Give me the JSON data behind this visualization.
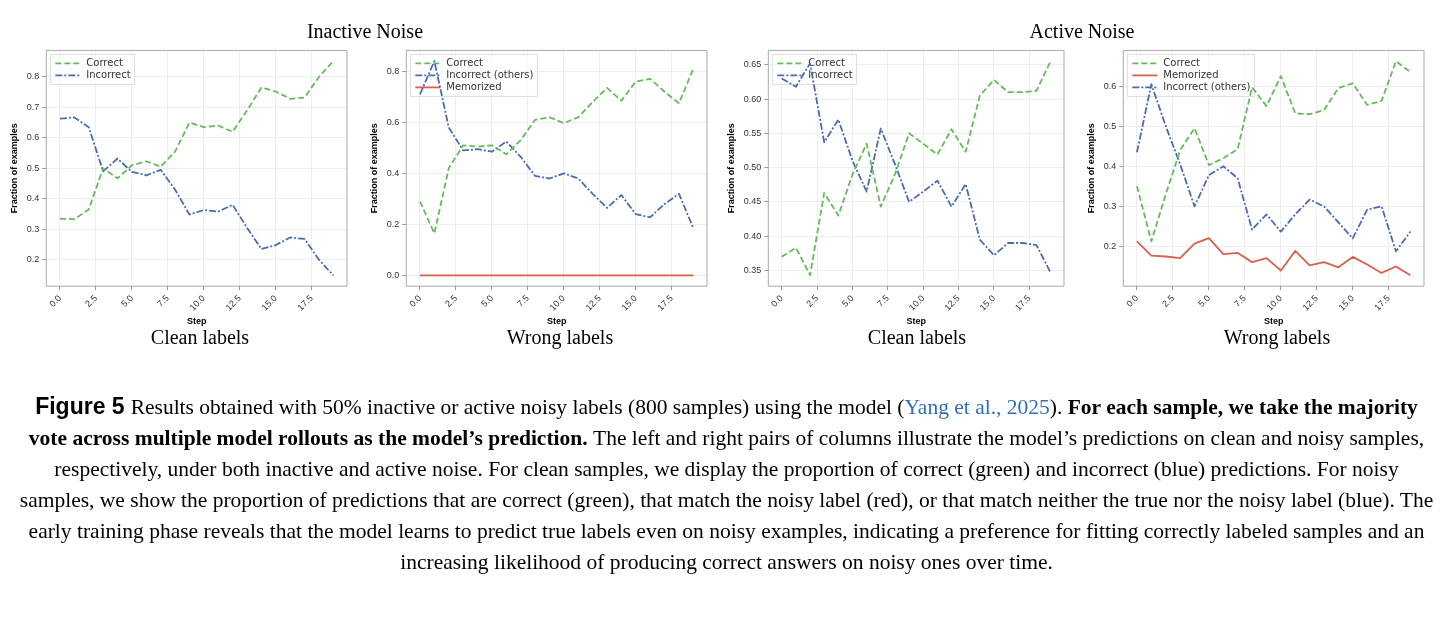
{
  "chart_data": [
    {
      "type": "line",
      "title": "Inactive Noise",
      "xlabel": "Step",
      "ylabel": "Fraction of examples",
      "annotations": [
        "Clean labels",
        "Figure 5",
        "Results obtained with 50% inactive or active noisy labels (800 samples) using the model (",
        "Yang et al., 2025",
        ").",
        "For each sample, we take the majority vote across multiple model rollouts as the model’s prediction.",
        "The left and right pairs of columns illustrate the model’s predictions on clean and noisy samples, respectively, under both inactive and active noise. For clean samples, we display the proportion of correct (green) and incorrect (blue) predictions. For noisy samples, we show the proportion of predictions that are correct (green), that match the noisy label (red), or that match neither the true nor the noisy label (blue). The early training phase reveals that the model learns to predict true labels even on noisy examples, indicating a preference for fitting correctly labeled samples and an increasing likelihood of producing correct answers on noisy ones over time."
      ],
      "x": [
        0,
        1,
        2,
        3,
        4,
        5,
        6,
        7,
        8,
        9,
        10,
        11,
        12,
        13,
        14,
        15,
        16,
        17,
        18,
        19
      ],
      "xlim": [
        -0.95,
        19.95
      ],
      "xticks": [
        {
          "value": 0,
          "label": "0.0"
        },
        {
          "value": 2.5,
          "label": "2.5"
        },
        {
          "value": 5,
          "label": "5.0"
        },
        {
          "value": 7.5,
          "label": "7.5"
        },
        {
          "value": 10,
          "label": "10.0"
        },
        {
          "value": 12.5,
          "label": "12.5"
        },
        {
          "value": 15,
          "label": "15.0"
        },
        {
          "value": 17.5,
          "label": "17.5"
        }
      ],
      "ylim": [
        0.113,
        0.887
      ],
      "yticks": [
        0.2,
        0.3,
        0.4,
        0.5,
        0.6,
        0.7,
        0.8
      ],
      "grid": true,
      "legend": "top left",
      "marker": "none",
      "series": [
        {
          "name": "Correct",
          "color": "#66bb5a",
          "line_style": "dashed",
          "values": [
            0.335,
            0.333,
            0.365,
            0.5,
            0.467,
            0.51,
            0.523,
            0.505,
            0.555,
            0.65,
            0.635,
            0.64,
            0.62,
            0.69,
            0.765,
            0.752,
            0.728,
            0.732,
            0.8,
            0.852
          ]
        },
        {
          "name": "Incorrect",
          "color": "#4c6bb0",
          "line_style": "dashdot",
          "values": [
            0.663,
            0.667,
            0.635,
            0.49,
            0.532,
            0.488,
            0.477,
            0.495,
            0.43,
            0.348,
            0.363,
            0.358,
            0.38,
            0.305,
            0.235,
            0.248,
            0.273,
            0.268,
            0.2,
            0.148
          ]
        }
      ]
    },
    {
      "type": "line",
      "xlabel": "Step",
      "ylabel": "Fraction of examples",
      "annotations": [
        "Wrong labels"
      ],
      "x": [
        0,
        1,
        2,
        3,
        4,
        5,
        6,
        7,
        8,
        9,
        10,
        11,
        12,
        13,
        14,
        15,
        16,
        17,
        18,
        19
      ],
      "xlim": [
        -0.95,
        19.95
      ],
      "xticks": [
        {
          "value": 0,
          "label": "0.0"
        },
        {
          "value": 2.5,
          "label": "2.5"
        },
        {
          "value": 5,
          "label": "5.0"
        },
        {
          "value": 7.5,
          "label": "7.5"
        },
        {
          "value": 10,
          "label": "10.0"
        },
        {
          "value": 12.5,
          "label": "12.5"
        },
        {
          "value": 15,
          "label": "15.0"
        },
        {
          "value": 17.5,
          "label": "17.5"
        }
      ],
      "ylim": [
        -0.042,
        0.882
      ],
      "yticks": [
        {
          "value": 0,
          "label": "0.0"
        },
        0.2,
        0.4,
        0.6,
        0.8
      ],
      "grid": true,
      "legend": "top left",
      "marker": "none",
      "series": [
        {
          "name": "Correct",
          "color": "#66bb5a",
          "line_style": "dashed",
          "values": [
            0.29,
            0.165,
            0.42,
            0.51,
            0.505,
            0.51,
            0.475,
            0.53,
            0.61,
            0.62,
            0.597,
            0.62,
            0.68,
            0.735,
            0.685,
            0.76,
            0.77,
            0.72,
            0.675,
            0.81
          ]
        },
        {
          "name": "Incorrect (others)",
          "color": "#4c6bb0",
          "line_style": "dashdot",
          "values": [
            0.71,
            0.84,
            0.58,
            0.49,
            0.495,
            0.485,
            0.525,
            0.465,
            0.39,
            0.38,
            0.4,
            0.38,
            0.32,
            0.265,
            0.315,
            0.24,
            0.228,
            0.28,
            0.32,
            0.185
          ]
        },
        {
          "name": "Memorized",
          "color": "#d9604f",
          "line_style": "solid",
          "values": [
            0,
            0,
            0,
            0,
            0,
            0,
            0,
            0,
            0,
            0,
            0,
            0,
            0,
            0,
            0,
            0,
            0,
            0,
            0,
            0
          ]
        }
      ]
    },
    {
      "type": "line",
      "title": "Active Noise",
      "xlabel": "Step",
      "ylabel": "Fraction of examples",
      "annotations": [
        "Clean labels"
      ],
      "x": [
        0,
        1,
        2,
        3,
        4,
        5,
        6,
        7,
        8,
        9,
        10,
        11,
        12,
        13,
        14,
        15,
        16,
        17,
        18,
        19
      ],
      "xlim": [
        -0.95,
        19.95
      ],
      "xticks": [
        {
          "value": 0,
          "label": "0.0"
        },
        {
          "value": 2.5,
          "label": "2.5"
        },
        {
          "value": 5,
          "label": "5.0"
        },
        {
          "value": 7.5,
          "label": "7.5"
        },
        {
          "value": 10,
          "label": "10.0"
        },
        {
          "value": 12.5,
          "label": "12.5"
        },
        {
          "value": 15,
          "label": "15.0"
        },
        {
          "value": 17.5,
          "label": "17.5"
        }
      ],
      "ylim": [
        0.327,
        0.671
      ],
      "yticks": [
        0.35,
        {
          "value": 0.4,
          "label": "0.40"
        },
        0.45,
        {
          "value": 0.5,
          "label": "0.50"
        },
        0.55,
        {
          "value": 0.6,
          "label": "0.60"
        },
        0.65
      ],
      "grid": true,
      "legend": "top left",
      "marker": "none",
      "series": [
        {
          "name": "Correct",
          "color": "#66bb5a",
          "line_style": "dashed",
          "values": [
            0.37,
            0.383,
            0.343,
            0.463,
            0.43,
            0.49,
            0.535,
            0.443,
            0.49,
            0.55,
            0.535,
            0.519,
            0.556,
            0.523,
            0.605,
            0.628,
            0.61,
            0.61,
            0.612,
            0.655
          ]
        },
        {
          "name": "Incorrect",
          "color": "#4c6bb0",
          "line_style": "dashdot",
          "values": [
            0.63,
            0.618,
            0.652,
            0.537,
            0.57,
            0.51,
            0.465,
            0.557,
            0.505,
            0.45,
            0.465,
            0.481,
            0.443,
            0.476,
            0.395,
            0.372,
            0.39,
            0.39,
            0.387,
            0.347
          ]
        }
      ]
    },
    {
      "type": "line",
      "xlabel": "Step",
      "ylabel": "Fraction of examples",
      "annotations": [
        "Wrong labels"
      ],
      "x": [
        0,
        1,
        2,
        3,
        4,
        5,
        6,
        7,
        8,
        9,
        10,
        11,
        12,
        13,
        14,
        15,
        16,
        17,
        18,
        19
      ],
      "xlim": [
        -0.95,
        19.95
      ],
      "xticks": [
        {
          "value": 0,
          "label": "0.0"
        },
        {
          "value": 2.5,
          "label": "2.5"
        },
        {
          "value": 5,
          "label": "5.0"
        },
        {
          "value": 7.5,
          "label": "7.5"
        },
        {
          "value": 10,
          "label": "10.0"
        },
        {
          "value": 12.5,
          "label": "12.5"
        },
        {
          "value": 15,
          "label": "15.0"
        },
        {
          "value": 17.5,
          "label": "17.5"
        }
      ],
      "ylim": [
        0.101,
        0.689
      ],
      "yticks": [
        0.2,
        0.3,
        0.4,
        0.5,
        0.6
      ],
      "grid": true,
      "legend": "top left",
      "marker": "none",
      "series": [
        {
          "name": "Correct",
          "color": "#66bb5a",
          "line_style": "dashed",
          "values": [
            0.35,
            0.213,
            0.33,
            0.44,
            0.495,
            0.403,
            0.42,
            0.443,
            0.597,
            0.55,
            0.625,
            0.532,
            0.53,
            0.54,
            0.595,
            0.607,
            0.553,
            0.563,
            0.662,
            0.635
          ]
        },
        {
          "name": "Memorized",
          "color": "#d9604f",
          "line_style": "solid",
          "values": [
            0.213,
            0.177,
            0.175,
            0.171,
            0.207,
            0.221,
            0.181,
            0.184,
            0.161,
            0.171,
            0.14,
            0.189,
            0.153,
            0.161,
            0.148,
            0.174,
            0.155,
            0.134,
            0.15,
            0.128
          ]
        },
        {
          "name": "Incorrect (others)",
          "color": "#4c6bb0",
          "line_style": "dashdot",
          "values": [
            0.435,
            0.605,
            0.5,
            0.405,
            0.3,
            0.378,
            0.4,
            0.37,
            0.242,
            0.28,
            0.237,
            0.28,
            0.317,
            0.3,
            0.26,
            0.22,
            0.292,
            0.3,
            0.188,
            0.237
          ]
        }
      ]
    }
  ]
}
